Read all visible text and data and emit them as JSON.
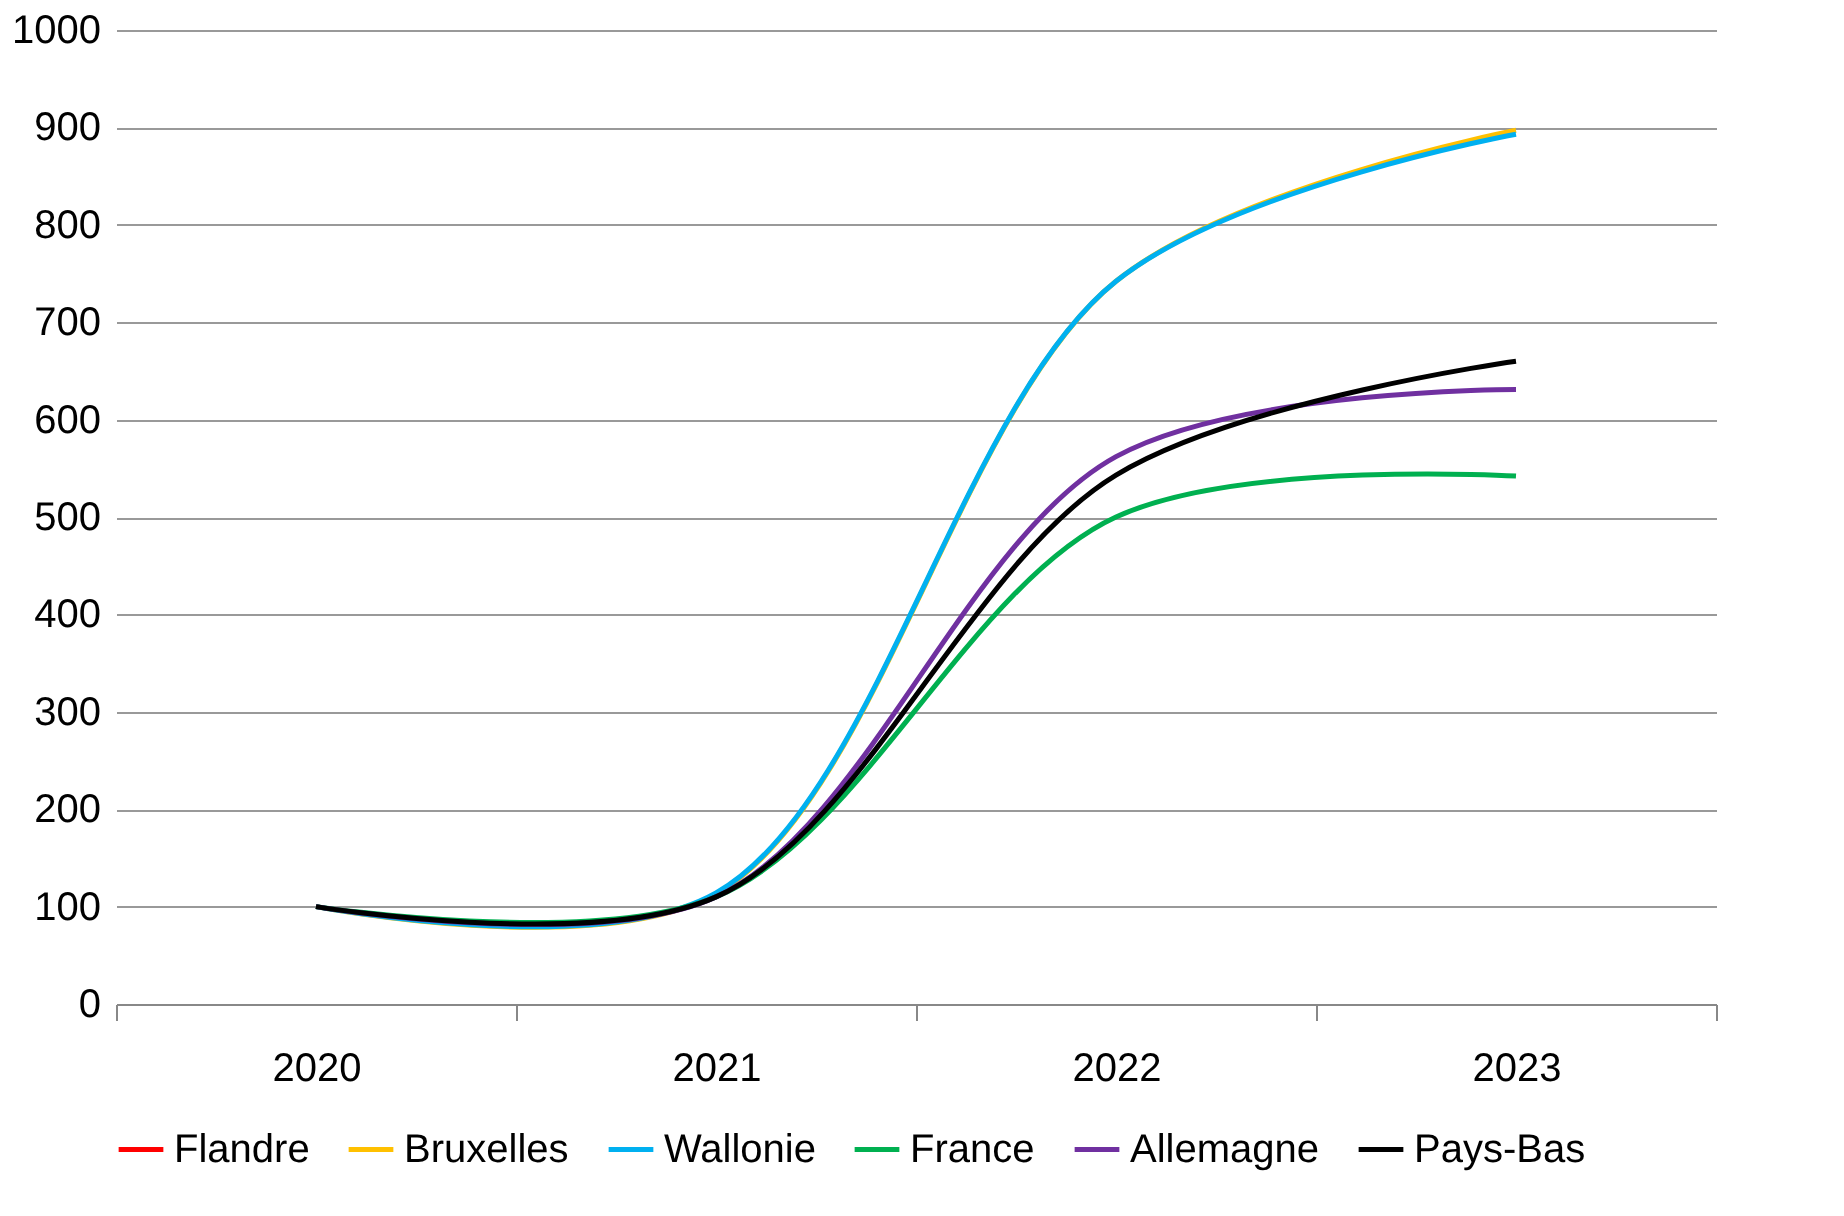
{
  "chart_data": {
    "type": "line",
    "categories": [
      "2020",
      "2021",
      "2022",
      "2023"
    ],
    "series": [
      {
        "name": "Flandre",
        "color": "#ff0000",
        "values": [
          null,
          null,
          null,
          null
        ]
      },
      {
        "name": "Bruxelles",
        "color": "#ffc000",
        "values": [
          100,
          113,
          742,
          897
        ]
      },
      {
        "name": "Wallonie",
        "color": "#00b0f0",
        "values": [
          100,
          114,
          742,
          893
        ]
      },
      {
        "name": "France",
        "color": "#00b050",
        "values": [
          100,
          110,
          500,
          542
        ]
      },
      {
        "name": "Allemagne",
        "color": "#7030a0",
        "values": [
          100,
          110,
          562,
          631
        ]
      },
      {
        "name": "Pays-Bas",
        "color": "#000000",
        "values": [
          100,
          110,
          543,
          660
        ]
      }
    ],
    "ylim": [
      0,
      1000
    ],
    "yticks": [
      0,
      100,
      200,
      300,
      400,
      500,
      600,
      700,
      800,
      900,
      1000
    ],
    "grid": "y",
    "legend": "bottom",
    "marker": "none",
    "line_style": "solid"
  }
}
